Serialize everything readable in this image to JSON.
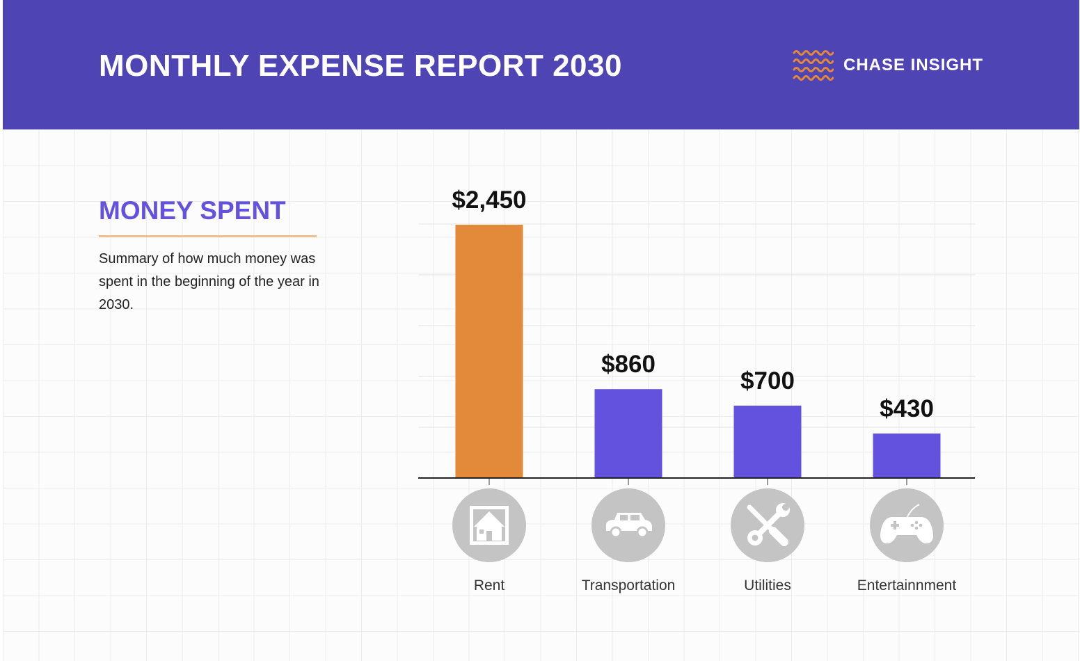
{
  "header": {
    "title": "MONTHLY EXPENSE REPORT 2030",
    "brand": "CHASE INSIGHT"
  },
  "sidebar": {
    "title": "MONEY SPENT",
    "description": "Summary of how much money was spent in the beginning of the year in 2030."
  },
  "colors": {
    "header_bg": "#4f44b4",
    "accent_orange": "#e28a39",
    "accent_purple": "#6352de",
    "icon_gray": "#c4c4c4"
  },
  "chart_data": {
    "type": "bar",
    "categories": [
      "Rent",
      "Transportation",
      "Utilities",
      "Entertainnment"
    ],
    "values": [
      2450,
      860,
      700,
      430
    ],
    "data_labels": [
      "$2,450",
      "$860",
      "$700",
      "$430"
    ],
    "icons": [
      "house-icon",
      "car-icon",
      "tools-icon",
      "gamepad-icon"
    ],
    "bar_colors": [
      "#e28a39",
      "#6352de",
      "#6352de",
      "#6352de"
    ],
    "title": "",
    "xlabel": "",
    "ylabel": "",
    "ylim": [
      0,
      2500
    ],
    "grid": true,
    "legend": "none"
  }
}
